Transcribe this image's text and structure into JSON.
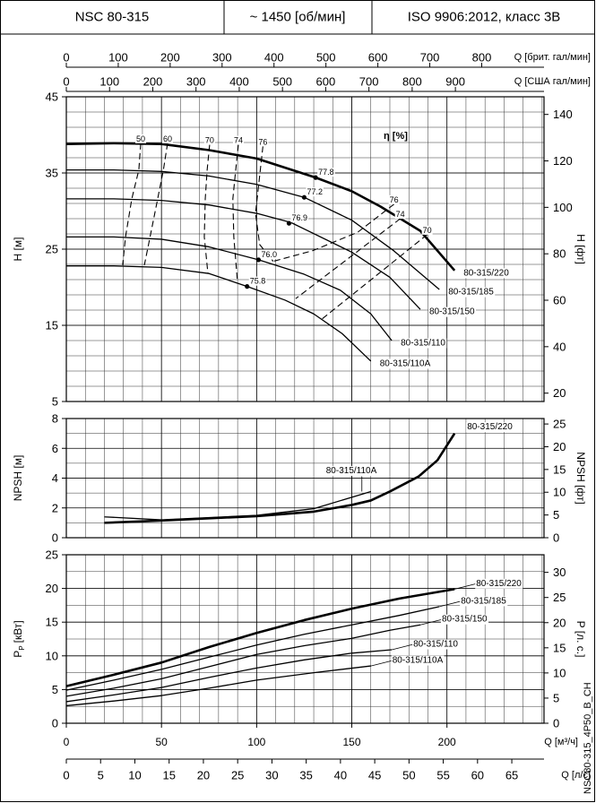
{
  "header": {
    "cells": [
      "NSC 80-315",
      "~ 1450 [об/мин]",
      "ISO 9906:2012, класс 3В"
    ]
  },
  "code": "NSC80-315_4P50_B_CH",
  "chart_data": [
    {
      "type": "line",
      "ylabel": "H [м]",
      "y2label": "H [фт]",
      "xlim": [
        0,
        251
      ],
      "xticks": [
        0,
        50,
        100,
        150,
        200
      ],
      "show_xtick_labels": false,
      "ylim": [
        5,
        45
      ],
      "yticks": [
        5,
        15,
        25,
        35,
        45
      ],
      "y2lim": [
        16.4,
        147.6
      ],
      "y2ticks": [
        20,
        40,
        60,
        80,
        100,
        120,
        140
      ],
      "grid": true,
      "minor_grid": [
        5,
        5
      ],
      "top_axes": [
        {
          "label": "Q [брит. гал/мин]",
          "lim": [
            0,
            920
          ],
          "ticks": [
            0,
            100,
            200,
            300,
            400,
            500,
            600,
            700,
            800
          ]
        },
        {
          "label": "Q [США гал/мин]",
          "lim": [
            0,
            1105
          ],
          "ticks": [
            0,
            100,
            200,
            300,
            400,
            500,
            600,
            700,
            800,
            900
          ]
        }
      ],
      "series": [
        {
          "name": "80-315/220",
          "color": "#000000",
          "bold": true,
          "x": [
            0,
            25,
            50,
            75,
            100,
            131,
            150,
            165,
            186,
            204
          ],
          "values": [
            38.8,
            38.9,
            38.8,
            38.0,
            36.9,
            34.4,
            32.6,
            30.6,
            27.4,
            22.2
          ]
        },
        {
          "name": "80-315/185",
          "color": "#000000",
          "bold": false,
          "x": [
            0,
            25,
            50,
            75,
            100,
            125,
            150,
            172,
            196
          ],
          "values": [
            35.4,
            35.4,
            35.2,
            34.6,
            33.5,
            31.8,
            28.8,
            24.8,
            19.7
          ]
        },
        {
          "name": "80-315/150",
          "color": "#000000",
          "bold": false,
          "x": [
            0,
            25,
            50,
            75,
            100,
            118,
            150,
            170,
            186
          ],
          "values": [
            31.6,
            31.6,
            31.4,
            30.8,
            29.7,
            28.5,
            24.6,
            21.3,
            17.1
          ]
        },
        {
          "name": "80-315/110",
          "color": "#000000",
          "bold": false,
          "x": [
            0,
            25,
            50,
            75,
            101,
            125,
            144,
            160,
            171
          ],
          "values": [
            26.6,
            26.6,
            26.3,
            25.3,
            23.6,
            21.7,
            19.6,
            16.5,
            13.0
          ]
        },
        {
          "name": "80-315/110A",
          "color": "#000000",
          "bold": false,
          "x": [
            0,
            25,
            50,
            75,
            95,
            115,
            130,
            145,
            160
          ],
          "values": [
            22.8,
            22.8,
            22.6,
            21.8,
            20.1,
            18.3,
            16.5,
            13.9,
            10.3
          ]
        }
      ],
      "efficiency_label": "η [%]",
      "efficiency_points": [
        {
          "label": "77.8",
          "x": 131,
          "y": 34.4
        },
        {
          "label": "77.2",
          "x": 125,
          "y": 31.8
        },
        {
          "label": "76.9",
          "x": 117,
          "y": 28.4
        },
        {
          "label": "76.0",
          "x": 101,
          "y": 23.6
        },
        {
          "label": "75.8",
          "x": 95,
          "y": 20.1
        }
      ],
      "iso_lines": [
        {
          "label": "50",
          "x": [
            39.1,
            38.1,
            34.4,
            31.1,
            29.6
          ],
          "values": [
            38.9,
            35.4,
            31.6,
            26.6,
            22.9
          ]
        },
        {
          "label": "60",
          "x": [
            53.2,
            51.0,
            48.0,
            44.0,
            41.0
          ],
          "values": [
            38.9,
            35.4,
            31.6,
            26.6,
            22.9
          ]
        },
        {
          "label": "70",
          "x": [
            75.3,
            74.0,
            73.0,
            72.5,
            74.4
          ],
          "values": [
            38.7,
            35.4,
            31.6,
            26.6,
            21.8
          ]
        },
        {
          "label": "74",
          "x": [
            90.4,
            89.0,
            87.5,
            88.0,
            89.9
          ],
          "values": [
            38.7,
            35.4,
            31.6,
            26.6,
            20.8
          ]
        },
        {
          "label": "76",
          "x": [
            103.3,
            101.4,
            99.4,
            101.6,
            108.7
          ],
          "values": [
            38.5,
            34.2,
            29.7,
            25.6,
            23.4
          ]
        },
        {
          "label": "76",
          "x": [
            172.2,
            153.0,
            129.4,
            108.7
          ],
          "values": [
            30.9,
            27.2,
            24.8,
            23.4
          ]
        },
        {
          "label": "74",
          "x": [
            175.5,
            120.5
          ],
          "values": [
            29.0,
            18.5
          ]
        },
        {
          "label": "70",
          "x": [
            189.6,
            133.2
          ],
          "values": [
            26.9,
            15.6
          ]
        }
      ]
    },
    {
      "type": "line",
      "ylabel": "NPSH [м]",
      "y2label": "NPSH [фт]",
      "xlim": [
        0,
        251
      ],
      "xticks": [
        0,
        50,
        100,
        150,
        200
      ],
      "show_xtick_labels": false,
      "ylim": [
        0,
        8
      ],
      "yticks": [
        0,
        2,
        4,
        6,
        8
      ],
      "y2lim": [
        0,
        26.2
      ],
      "y2ticks": [
        0,
        5,
        10,
        15,
        20,
        25
      ],
      "grid": true,
      "minor_grid": [
        5,
        2
      ],
      "series": [
        {
          "name": "80-315/220",
          "color": "#000000",
          "bold": true,
          "x": [
            20,
            50,
            100,
            130,
            150,
            160,
            170,
            185,
            195,
            204
          ],
          "values": [
            1.0,
            1.15,
            1.45,
            1.75,
            2.2,
            2.5,
            3.1,
            4.1,
            5.2,
            7.0
          ]
        },
        {
          "name": "80-315/110A",
          "color": "#000000",
          "bold": false,
          "x": [
            20,
            50,
            100,
            130,
            160
          ],
          "values": [
            1.4,
            1.2,
            1.5,
            1.95,
            3.1
          ]
        }
      ]
    },
    {
      "type": "line",
      "ylabel": "P",
      "ylabel_sub": "P",
      "ylabel_unit": "[кВт]",
      "y2label": "P [л. с.]",
      "xlim": [
        0,
        251
      ],
      "xticks": [
        0,
        50,
        100,
        150,
        200
      ],
      "show_xtick_labels": true,
      "xlabel": "Q [м³/ч]",
      "ylim": [
        0,
        25
      ],
      "yticks": [
        0,
        5,
        10,
        15,
        20,
        25
      ],
      "y2lim": [
        0,
        33.5
      ],
      "y2ticks": [
        0,
        5,
        10,
        15,
        20,
        25,
        30
      ],
      "grid": true,
      "minor_grid": [
        5,
        2
      ],
      "bottom_axes": [
        {
          "label": "Q [л/с]",
          "lim": [
            0,
            69.7
          ],
          "ticks": [
            0,
            5,
            10,
            15,
            20,
            25,
            30,
            35,
            40,
            45,
            50,
            55,
            60,
            65
          ]
        }
      ],
      "series": [
        {
          "name": "80-315/220",
          "color": "#000000",
          "bold": true,
          "x": [
            0,
            25,
            50,
            75,
            100,
            125,
            150,
            175,
            204
          ],
          "values": [
            5.5,
            7.2,
            9.0,
            11.3,
            13.4,
            15.3,
            17.0,
            18.5,
            19.9
          ]
        },
        {
          "name": "80-315/185",
          "color": "#000000",
          "bold": false,
          "x": [
            0,
            25,
            50,
            75,
            100,
            125,
            150,
            175,
            196
          ],
          "values": [
            4.9,
            6.4,
            8.0,
            9.8,
            11.6,
            13.2,
            14.6,
            16.0,
            17.3
          ]
        },
        {
          "name": "80-315/150",
          "color": "#000000",
          "bold": false,
          "x": [
            0,
            25,
            50,
            75,
            100,
            125,
            150,
            170,
            186
          ],
          "values": [
            4.0,
            5.2,
            6.6,
            8.4,
            10.2,
            11.5,
            12.6,
            13.8,
            14.6
          ]
        },
        {
          "name": "80-315/110",
          "color": "#000000",
          "bold": false,
          "x": [
            0,
            25,
            50,
            75,
            100,
            125,
            150,
            171
          ],
          "values": [
            3.2,
            4.2,
            5.3,
            6.8,
            8.2,
            9.4,
            10.4,
            10.9
          ]
        },
        {
          "name": "80-315/110A",
          "color": "#000000",
          "bold": false,
          "x": [
            0,
            25,
            50,
            75,
            100,
            130,
            160
          ],
          "values": [
            2.6,
            3.3,
            4.1,
            5.2,
            6.4,
            7.5,
            8.5
          ]
        }
      ]
    }
  ]
}
